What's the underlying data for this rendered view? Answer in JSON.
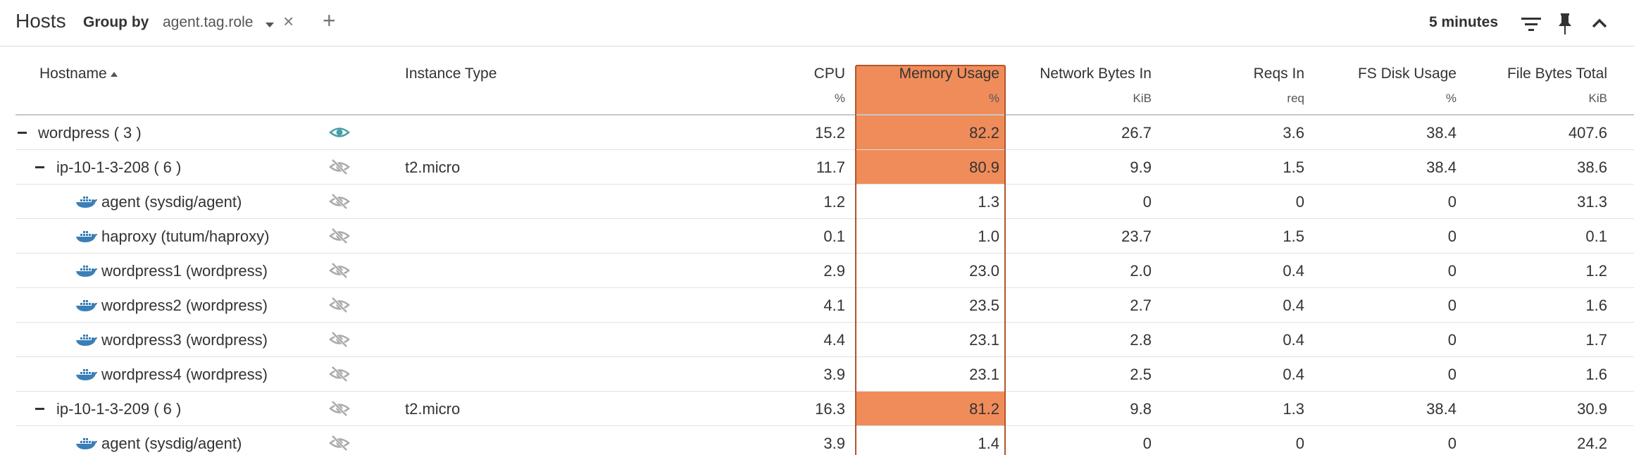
{
  "header": {
    "title": "Hosts",
    "group_by_label": "Group by",
    "group_by_value": "agent.tag.role",
    "remove_icon": "close-icon",
    "add_icon": "plus-icon",
    "time_range": "5 minutes",
    "icons": [
      "filter-icon",
      "pin-icon",
      "chevron-up-icon"
    ]
  },
  "columns": [
    {
      "label": "Hostname",
      "unit": "",
      "sorted": "ascending"
    },
    {
      "label": "Instance Type",
      "unit": ""
    },
    {
      "label": "CPU",
      "unit": "%"
    },
    {
      "label": "Memory Usage",
      "unit": "%",
      "highlighted": true
    },
    {
      "label": "Network Bytes In",
      "unit": "KiB"
    },
    {
      "label": "Reqs In",
      "unit": "req"
    },
    {
      "label": "FS Disk Usage",
      "unit": "%"
    },
    {
      "label": "File Bytes Total",
      "unit": "KiB"
    }
  ],
  "colors": {
    "highlight": "#f08c5a",
    "highlight_border": "#b2552a",
    "visible_eye": "#4a9ea6",
    "hidden_eye": "#aaaaaa",
    "container_icon": "#3a7fb8"
  },
  "rows": [
    {
      "name": "wordpress ( 3 )",
      "type": "",
      "cpu": "15.2",
      "mem": "82.2",
      "net": "26.7",
      "reqs": "3.6",
      "fs": "38.4",
      "file": "407.6",
      "level": 0,
      "kind": "group",
      "visibility": "visible",
      "mem_high": true
    },
    {
      "name": "ip-10-1-3-208 ( 6 )",
      "type": "t2.micro",
      "cpu": "11.7",
      "mem": "80.9",
      "net": "9.9",
      "reqs": "1.5",
      "fs": "38.4",
      "file": "38.6",
      "level": 1,
      "kind": "host",
      "visibility": "hidden",
      "mem_high": true
    },
    {
      "name": "agent (sysdig/agent)",
      "type": "",
      "cpu": "1.2",
      "mem": "1.3",
      "net": "0",
      "reqs": "0",
      "fs": "0",
      "file": "31.3",
      "level": 2,
      "kind": "container",
      "visibility": "hidden",
      "mem_high": false
    },
    {
      "name": "haproxy (tutum/haproxy)",
      "type": "",
      "cpu": "0.1",
      "mem": "1.0",
      "net": "23.7",
      "reqs": "1.5",
      "fs": "0",
      "file": "0.1",
      "level": 2,
      "kind": "container",
      "visibility": "hidden",
      "mem_high": false
    },
    {
      "name": "wordpress1 (wordpress)",
      "type": "",
      "cpu": "2.9",
      "mem": "23.0",
      "net": "2.0",
      "reqs": "0.4",
      "fs": "0",
      "file": "1.2",
      "level": 2,
      "kind": "container",
      "visibility": "hidden",
      "mem_high": false
    },
    {
      "name": "wordpress2 (wordpress)",
      "type": "",
      "cpu": "4.1",
      "mem": "23.5",
      "net": "2.7",
      "reqs": "0.4",
      "fs": "0",
      "file": "1.6",
      "level": 2,
      "kind": "container",
      "visibility": "hidden",
      "mem_high": false
    },
    {
      "name": "wordpress3 (wordpress)",
      "type": "",
      "cpu": "4.4",
      "mem": "23.1",
      "net": "2.8",
      "reqs": "0.4",
      "fs": "0",
      "file": "1.7",
      "level": 2,
      "kind": "container",
      "visibility": "hidden",
      "mem_high": false
    },
    {
      "name": "wordpress4 (wordpress)",
      "type": "",
      "cpu": "3.9",
      "mem": "23.1",
      "net": "2.5",
      "reqs": "0.4",
      "fs": "0",
      "file": "1.6",
      "level": 2,
      "kind": "container",
      "visibility": "hidden",
      "mem_high": false
    },
    {
      "name": "ip-10-1-3-209 ( 6 )",
      "type": "t2.micro",
      "cpu": "16.3",
      "mem": "81.2",
      "net": "9.8",
      "reqs": "1.3",
      "fs": "38.4",
      "file": "30.9",
      "level": 1,
      "kind": "host",
      "visibility": "hidden",
      "mem_high": true
    },
    {
      "name": "agent (sysdig/agent)",
      "type": "",
      "cpu": "3.9",
      "mem": "1.4",
      "net": "0",
      "reqs": "0",
      "fs": "0",
      "file": "24.2",
      "level": 2,
      "kind": "container",
      "visibility": "hidden",
      "mem_high": false
    }
  ]
}
